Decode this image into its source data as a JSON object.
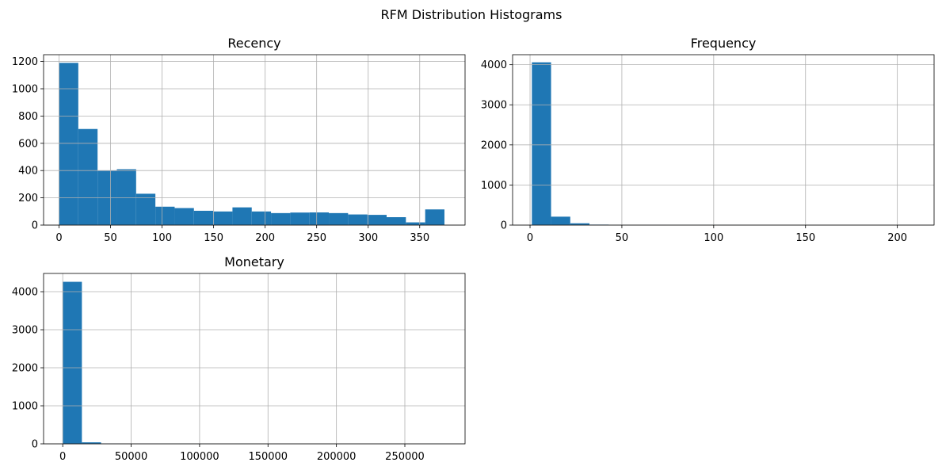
{
  "figure": {
    "title": "RFM Distribution Histograms"
  },
  "chart_data": [
    {
      "type": "bar",
      "title": "Recency",
      "xlabel": "",
      "ylabel": "",
      "grid": true,
      "color": "#1f77b4",
      "bin_edges": [
        0,
        18.7,
        37.4,
        56.1,
        74.8,
        93.5,
        112.2,
        130.9,
        149.6,
        168.3,
        187.0,
        205.7,
        224.4,
        243.1,
        261.8,
        280.5,
        299.2,
        317.9,
        336.6,
        355.3,
        374.0
      ],
      "values": [
        1190,
        705,
        400,
        410,
        230,
        135,
        125,
        105,
        100,
        130,
        100,
        88,
        92,
        93,
        88,
        78,
        75,
        58,
        20,
        115
      ],
      "xlim": [
        -15,
        394
      ],
      "ylim": [
        0,
        1250
      ],
      "xticks": [
        0,
        50,
        100,
        150,
        200,
        250,
        300,
        350
      ],
      "yticks": [
        0,
        200,
        400,
        600,
        800,
        1000,
        1200
      ]
    },
    {
      "type": "bar",
      "title": "Frequency",
      "xlabel": "",
      "ylabel": "",
      "grid": true,
      "color": "#1f77b4",
      "bin_edges": [
        1,
        11.45,
        21.9,
        32.35,
        42.8,
        53.25,
        63.7,
        74.15,
        84.6,
        95.05,
        105.5,
        115.95,
        126.4,
        136.85,
        147.3,
        157.75,
        168.2,
        178.65,
        189.1,
        199.55,
        210
      ],
      "values": [
        4060,
        210,
        45,
        12,
        5,
        3,
        2,
        1,
        1,
        1,
        1,
        0,
        0,
        0,
        0,
        0,
        0,
        0,
        0,
        1
      ],
      "xlim": [
        -9.5,
        220
      ],
      "ylim": [
        0,
        4250
      ],
      "xticks": [
        0,
        50,
        100,
        150,
        200
      ],
      "yticks": [
        0,
        1000,
        2000,
        3000,
        4000
      ]
    },
    {
      "type": "bar",
      "title": "Monetary",
      "xlabel": "",
      "ylabel": "",
      "grid": true,
      "color": "#1f77b4",
      "bin_edges": [
        0,
        14000,
        28000,
        42000,
        56000,
        70000,
        84000,
        98000,
        112000,
        126000,
        140000,
        154000,
        168000,
        182000,
        196000,
        210000,
        224000,
        238000,
        252000,
        266000,
        280000
      ],
      "values": [
        4260,
        40,
        8,
        3,
        2,
        1,
        1,
        1,
        0,
        1,
        0,
        0,
        0,
        0,
        0,
        0,
        0,
        0,
        0,
        1
      ],
      "xlim": [
        -14000,
        294000
      ],
      "ylim": [
        0,
        4480
      ],
      "xticks": [
        0,
        50000,
        100000,
        150000,
        200000,
        250000
      ],
      "yticks": [
        0,
        1000,
        2000,
        3000,
        4000
      ]
    }
  ]
}
